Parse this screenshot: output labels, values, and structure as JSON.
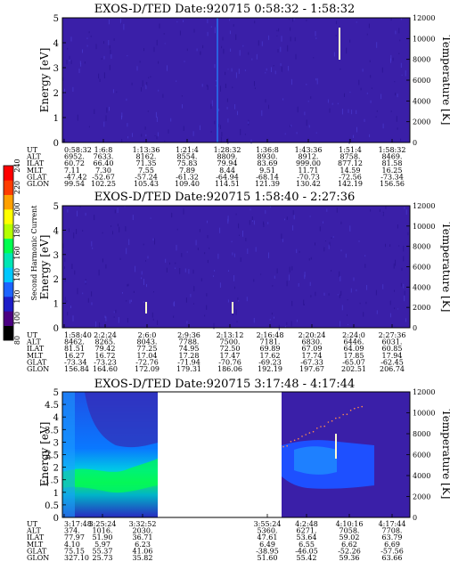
{
  "chart_data": [
    {
      "type": "heatmap",
      "title": "EXOS-D/TED   Date:920715   0:58:32 - 1:58:32",
      "ylabel": "Energy [eV]",
      "y2label": "Temperature [K]",
      "ylim": [
        0,
        5
      ],
      "yticks": [
        "0",
        "1",
        "2",
        "3",
        "4",
        "5"
      ],
      "y2lim": [
        0,
        12000
      ],
      "y2ticks": [
        "0",
        "2000",
        "4000",
        "6000",
        "8000",
        "10000",
        "12000"
      ],
      "rows": [
        {
          "name": "UT",
          "values": [
            "0:58:32",
            "1:6:8",
            "1:13:36",
            "1:21:4",
            "1:28:32",
            "1:36:8",
            "1:43:36",
            "1:51:4",
            "1:58:32"
          ]
        },
        {
          "name": "ALT",
          "values": [
            "6952.",
            "7633.",
            "8162.",
            "8554.",
            "8809.",
            "8930.",
            "8912.",
            "8758.",
            "8469."
          ]
        },
        {
          "name": "ILAT",
          "values": [
            "60.72",
            "66.40",
            "71.35",
            "75.83",
            "79.94",
            "83.69",
            "999.00",
            "877.12",
            "81.58"
          ]
        },
        {
          "name": "MLT",
          "values": [
            "7.11",
            "7.30",
            "7.55",
            "7.89",
            "8.44",
            "9.51",
            "11.71",
            "14.59",
            "16.25"
          ]
        },
        {
          "name": "GLAT",
          "values": [
            "-47.42",
            "-52.67",
            "-57.24",
            "-61.32",
            "-64.94",
            "-68.14",
            "-70.73",
            "-72.56",
            "-73.34"
          ]
        },
        {
          "name": "GLON",
          "values": [
            "99.54",
            "102.25",
            "105.43",
            "109.40",
            "114.51",
            "121.39",
            "130.42",
            "142.19",
            "156.56"
          ]
        }
      ]
    },
    {
      "type": "heatmap",
      "title": "EXOS-D/TED   Date:920715   1:58:40 - 2:27:36",
      "ylabel": "Energy [eV]",
      "y2label": "Temperature [K]",
      "ylim": [
        0,
        5
      ],
      "yticks": [
        "0",
        "1",
        "2",
        "3",
        "4",
        "5"
      ],
      "y2lim": [
        0,
        12000
      ],
      "y2ticks": [
        "0",
        "2000",
        "4000",
        "6000",
        "8000",
        "10000",
        "12000"
      ],
      "rows": [
        {
          "name": "UT",
          "values": [
            "1:58:40",
            "2:2:24",
            "2:6:0",
            "2:9:36",
            "2:13:12",
            "2:16:48",
            "2:20:24",
            "2:24:0",
            "2:27:36"
          ]
        },
        {
          "name": "ALT",
          "values": [
            "8462.",
            "8265.",
            "8043.",
            "7788.",
            "7500.",
            "7181.",
            "6830.",
            "6446.",
            "6031."
          ]
        },
        {
          "name": "ILAT",
          "values": [
            "81.51",
            "79.42",
            "77.25",
            "74.95",
            "72.50",
            "69.89",
            "67.09",
            "64.09",
            "60.85"
          ]
        },
        {
          "name": "MLT",
          "values": [
            "16.27",
            "16.72",
            "17.04",
            "17.28",
            "17.47",
            "17.62",
            "17.74",
            "17.85",
            "17.94"
          ]
        },
        {
          "name": "GLAT",
          "values": [
            "-73.34",
            "-73.23",
            "-72.76",
            "-71.94",
            "-70.76",
            "-69.23",
            "-67.33",
            "-65.07",
            "-62.45"
          ]
        },
        {
          "name": "GLON",
          "values": [
            "156.84",
            "164.60",
            "172.09",
            "179.31",
            "186.06",
            "192.19",
            "197.67",
            "202.51",
            "206.74"
          ]
        }
      ]
    },
    {
      "type": "heatmap",
      "title": "EXOS-D/TED   Date:920715   3:17:48 - 4:17:44",
      "ylabel": "Energy [eV]",
      "y2label": "Temperature [K]",
      "ylim": [
        0,
        5
      ],
      "yticks": [
        "0",
        "0.5",
        "1",
        "1.5",
        "2",
        "2.5",
        "3",
        "3.5",
        "4",
        "4.5",
        "5"
      ],
      "y2lim": [
        0,
        12000
      ],
      "y2ticks": [
        "0",
        "2000",
        "4000",
        "6000",
        "8000",
        "10000",
        "12000"
      ],
      "rows": [
        {
          "name": "UT",
          "values": [
            "3:17:48",
            "3:25:24",
            "3:32:52",
            "3:55:24",
            "4:2:48",
            "4:10:16",
            "4:17:44"
          ]
        },
        {
          "name": "ALT",
          "values": [
            "374.",
            "1016.",
            "2030.",
            "5360.",
            "6271.",
            "7058.",
            "7708."
          ]
        },
        {
          "name": "ILAT",
          "values": [
            "77.97",
            "51.90",
            "36.71",
            "47.61",
            "53.64",
            "59.02",
            "63.79"
          ]
        },
        {
          "name": "MLT",
          "values": [
            "4.10",
            "5.97",
            "6.23",
            "6.49",
            "6.55",
            "6.62",
            "6.69"
          ]
        },
        {
          "name": "GLAT",
          "values": [
            "75.15",
            "55.37",
            "41.06",
            "-38.95",
            "-46.05",
            "-52.26",
            "-57.56"
          ]
        },
        {
          "name": "GLON",
          "values": [
            "327.10",
            "25.73",
            "35.82",
            "51.60",
            "55.42",
            "59.36",
            "63.66"
          ]
        }
      ]
    }
  ],
  "colorbar": {
    "label": "Second Harmonic Current",
    "ticks": [
      "80",
      "100",
      "120",
      "140",
      "160",
      "180",
      "200",
      "220",
      "240"
    ],
    "range": [
      80,
      240
    ],
    "colors": [
      "#000000",
      "#4b0082",
      "#1e1ec8",
      "#1e64ff",
      "#00c8ff",
      "#00e6b4",
      "#00ff50",
      "#b4ff00",
      "#ffff00",
      "#ffa000",
      "#ff3c00",
      "#ff0000"
    ]
  },
  "colors": {
    "background": "#3a1fa8",
    "noise_light": "#4a3bd0",
    "noise_dark": "#2a1290",
    "streak": "#fffbd0"
  }
}
